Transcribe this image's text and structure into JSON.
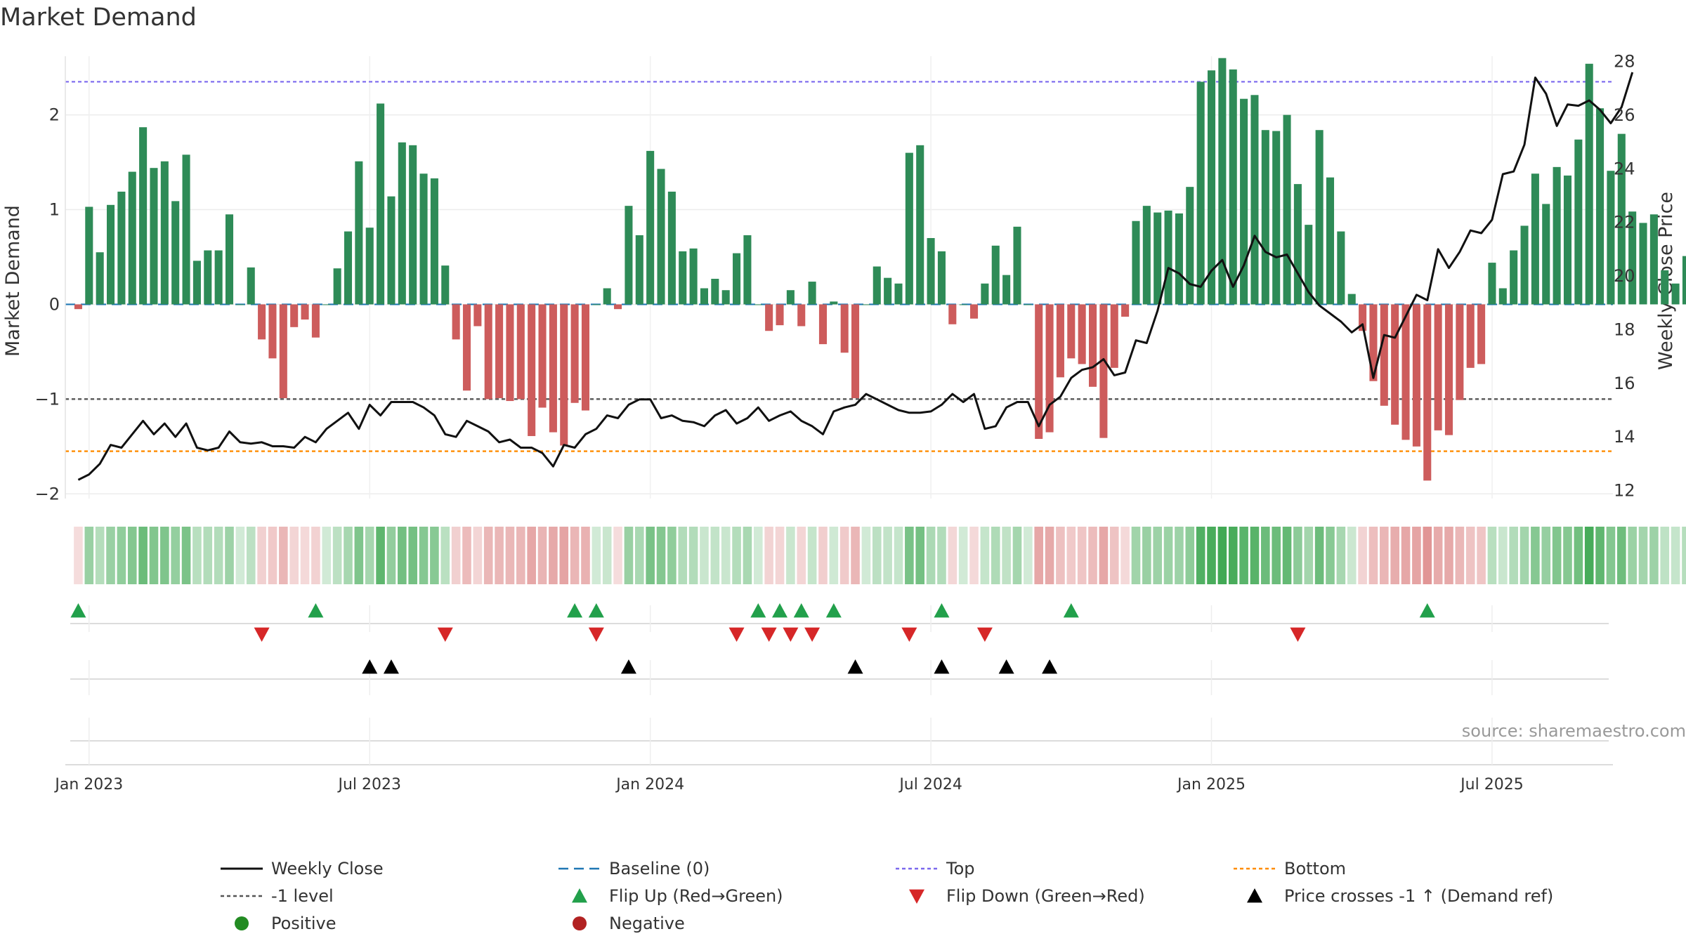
{
  "chart_data": {
    "type": "bar+line",
    "title": "Market Demand",
    "ylabel": "Market Demand",
    "y2label": "Weekly Close Price",
    "source": "source: sharemaestro.com",
    "ylim": [
      -2.05,
      2.62
    ],
    "y2lim": [
      11.7,
      28.2
    ],
    "yticks": [
      -2,
      -1,
      0,
      1,
      2
    ],
    "ytick_labels": [
      "−2",
      "−1",
      "0",
      "1",
      "2"
    ],
    "y2ticks": [
      12,
      14,
      16,
      18,
      20,
      22,
      24,
      26,
      28
    ],
    "y2tick_labels": [
      "12",
      "14",
      "16",
      "18",
      "20",
      "22",
      "24",
      "26",
      "28"
    ],
    "xticks": [
      {
        "week": 1,
        "label": "Jan 2023"
      },
      {
        "week": 27,
        "label": "Jul 2023"
      },
      {
        "week": 53,
        "label": "Jan 2024"
      },
      {
        "week": 79,
        "label": "Jul 2024"
      },
      {
        "week": 105,
        "label": "Jan 2025"
      },
      {
        "week": 131,
        "label": "Jul 2025"
      }
    ],
    "week_range": [
      -1.2,
      142.2
    ],
    "levels": {
      "baseline": 0,
      "top": 2.35,
      "minus1": -1,
      "bottom": -1.55
    },
    "colors": {
      "positive": "#2e8b57",
      "negative": "#cd5c5c",
      "line": "#111111",
      "baseline": "#1f77b4",
      "top": "#7b68ee",
      "minus1": "#555555",
      "bottom": "#ff8c00",
      "flip_up": "#22a04b",
      "flip_down": "#d62728",
      "cross": "#000000",
      "dot_pos": "#228b22",
      "dot_neg": "#b22222"
    },
    "demand": [
      -0.05,
      1.03,
      0.55,
      1.05,
      1.19,
      1.4,
      1.87,
      1.44,
      1.51,
      1.09,
      1.58,
      0.46,
      0.57,
      0.57,
      0.95,
      0.0,
      0.39,
      -0.37,
      -0.57,
      -0.99,
      -0.24,
      -0.16,
      -0.35,
      0.0,
      0.38,
      0.77,
      1.51,
      0.81,
      2.12,
      1.14,
      1.71,
      1.68,
      1.38,
      1.33,
      0.41,
      -0.37,
      -0.91,
      -0.23,
      -1.0,
      -0.99,
      -1.02,
      -1.0,
      -1.39,
      -1.09,
      -1.35,
      -1.49,
      -1.04,
      -1.12,
      0.0,
      0.17,
      -0.05,
      1.04,
      0.73,
      1.62,
      1.43,
      1.19,
      0.56,
      0.59,
      0.17,
      0.27,
      0.15,
      0.54,
      0.73,
      0.0,
      -0.28,
      -0.22,
      0.15,
      -0.23,
      0.24,
      -0.42,
      0.03,
      -0.51,
      -0.99,
      0.0,
      0.4,
      0.28,
      0.22,
      1.6,
      1.68,
      0.7,
      0.56,
      -0.21,
      0.0,
      -0.15,
      0.22,
      0.62,
      0.31,
      0.82,
      0.0,
      -1.42,
      -1.35,
      -0.77,
      -0.57,
      -0.63,
      -0.87,
      -1.41,
      -0.67,
      -0.13,
      0.88,
      1.04,
      0.97,
      0.99,
      0.96,
      1.24,
      2.35,
      2.47,
      2.6,
      2.48,
      2.17,
      2.21,
      1.84,
      1.83,
      2.0,
      1.27,
      0.84,
      1.84,
      1.34,
      0.77,
      0.11,
      -0.28,
      -0.81,
      -1.07,
      -1.27,
      -1.43,
      -1.5,
      -1.86,
      -1.33,
      -1.38,
      -1.01,
      -0.67,
      -0.63,
      0.44,
      0.17,
      0.57,
      0.83,
      1.38,
      1.06,
      1.45,
      1.36,
      1.74,
      2.54,
      2.07,
      1.41,
      1.8,
      0.98,
      0.86,
      0.95,
      0.36,
      0.22,
      0.51
    ],
    "close": [
      12.4,
      12.6,
      13.0,
      13.7,
      13.6,
      14.1,
      14.6,
      14.1,
      14.5,
      14.0,
      14.5,
      13.6,
      13.5,
      13.6,
      14.2,
      13.8,
      13.75,
      13.8,
      13.65,
      13.65,
      13.6,
      14.0,
      13.8,
      14.3,
      14.6,
      14.9,
      14.3,
      15.2,
      14.8,
      15.3,
      15.3,
      15.3,
      15.1,
      14.8,
      14.1,
      14.0,
      14.6,
      14.4,
      14.2,
      13.8,
      13.9,
      13.6,
      13.6,
      13.4,
      12.9,
      13.7,
      13.6,
      14.1,
      14.3,
      14.8,
      14.7,
      15.2,
      15.4,
      15.4,
      14.7,
      14.8,
      14.6,
      14.55,
      14.4,
      14.8,
      15.0,
      14.5,
      14.7,
      15.1,
      14.6,
      14.8,
      14.95,
      14.6,
      14.4,
      14.1,
      14.95,
      15.1,
      15.2,
      15.6,
      15.4,
      15.2,
      15.0,
      14.9,
      14.9,
      14.95,
      15.2,
      15.6,
      15.3,
      15.6,
      14.3,
      14.4,
      15.1,
      15.3,
      15.3,
      14.4,
      15.2,
      15.5,
      16.2,
      16.5,
      16.6,
      16.9,
      16.3,
      16.4,
      17.6,
      17.5,
      18.7,
      20.3,
      20.1,
      19.7,
      19.6,
      20.2,
      20.6,
      19.6,
      20.4,
      21.5,
      20.9,
      20.7,
      20.8,
      20.1,
      19.4,
      18.9,
      18.6,
      18.3,
      17.9,
      18.2,
      16.2,
      17.8,
      17.7,
      18.5,
      19.3,
      19.1,
      21.0,
      20.3,
      20.9,
      21.7,
      21.6,
      22.1,
      23.8,
      23.9,
      24.9,
      27.4,
      26.8,
      25.6,
      26.4,
      26.35,
      26.55,
      26.2,
      25.7,
      26.3,
      27.6
    ],
    "flip_up_weeks": [
      0,
      22,
      46,
      48,
      63,
      65,
      67,
      70,
      80,
      92,
      125
    ],
    "flip_down_weeks": [
      17,
      34,
      48,
      61,
      64,
      66,
      68,
      77,
      84,
      113
    ],
    "cross_weeks": [
      27,
      29,
      51,
      72,
      80,
      86,
      90
    ],
    "legend": [
      {
        "key": "line",
        "label": "Weekly Close"
      },
      {
        "key": "baseline",
        "label": "Baseline (0)"
      },
      {
        "key": "top",
        "label": "Top"
      },
      {
        "key": "bottom",
        "label": "Bottom"
      },
      {
        "key": "minus1",
        "label": "-1 level"
      },
      {
        "key": "flip_up",
        "label": "Flip Up (Red→Green)"
      },
      {
        "key": "flip_down",
        "label": "Flip Down (Green→Red)"
      },
      {
        "key": "cross",
        "label": "Price crosses -1 ↑ (Demand ref)"
      },
      {
        "key": "dot_pos",
        "label": "Positive"
      },
      {
        "key": "dot_neg",
        "label": "Negative"
      }
    ]
  }
}
